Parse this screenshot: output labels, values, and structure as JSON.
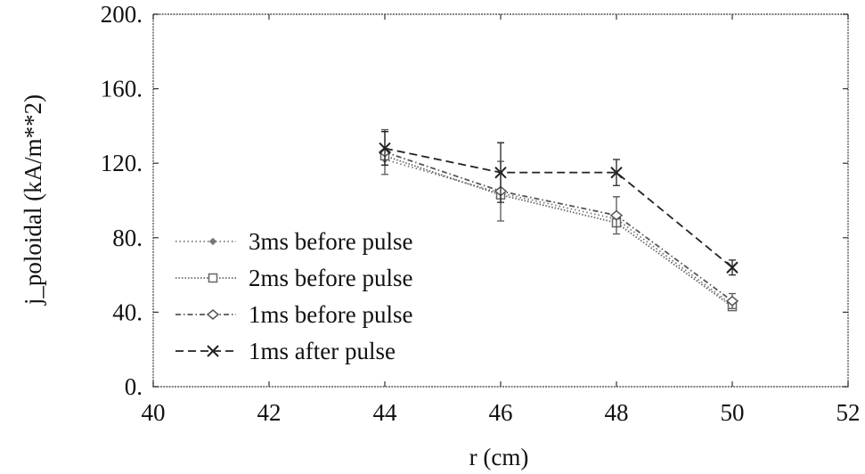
{
  "chart_data": {
    "type": "line",
    "title": "",
    "xlabel": "r (cm)",
    "ylabel": "j_poloidal (kA/m**2)",
    "xlim": [
      40,
      52
    ],
    "ylim": [
      0,
      200
    ],
    "x_ticks": [
      40,
      42,
      44,
      46,
      48,
      50,
      52
    ],
    "x_tick_labels": [
      "40",
      "42",
      "44",
      "46",
      "48",
      "50",
      "52"
    ],
    "y_ticks": [
      0,
      40,
      80,
      120,
      160,
      200
    ],
    "y_tick_labels": [
      "0.",
      "40.",
      "80.",
      "120.",
      "160.",
      "200."
    ],
    "grid": false,
    "legend_position": "left",
    "series": [
      {
        "name": "3ms before pulse",
        "marker": "diamond-small",
        "dash": "dotted",
        "color": "#777777",
        "points": [
          {
            "x": 44,
            "y": 122
          },
          {
            "x": 46,
            "y": 104
          },
          {
            "x": 48,
            "y": 90
          },
          {
            "x": 50,
            "y": 44
          }
        ]
      },
      {
        "name": "2ms before pulse",
        "marker": "square",
        "dash": "dotted-dense",
        "color": "#666666",
        "points": [
          {
            "x": 44,
            "y": 124
          },
          {
            "x": 46,
            "y": 103
          },
          {
            "x": 48,
            "y": 88
          },
          {
            "x": 50,
            "y": 43
          }
        ]
      },
      {
        "name": "1ms before pulse",
        "marker": "diamond",
        "dash": "dash-dot",
        "color": "#555555",
        "points": [
          {
            "x": 44,
            "y": 126,
            "err": 12
          },
          {
            "x": 46,
            "y": 105,
            "err": 16
          },
          {
            "x": 48,
            "y": 92,
            "err": 10
          },
          {
            "x": 50,
            "y": 46,
            "err": 4
          }
        ]
      },
      {
        "name": "1ms after pulse",
        "marker": "x",
        "dash": "dashed",
        "color": "#222222",
        "points": [
          {
            "x": 44,
            "y": 128,
            "err": 9
          },
          {
            "x": 46,
            "y": 115,
            "err": 16
          },
          {
            "x": 48,
            "y": 115,
            "err": 7
          },
          {
            "x": 50,
            "y": 64,
            "err": 4
          }
        ]
      }
    ]
  }
}
